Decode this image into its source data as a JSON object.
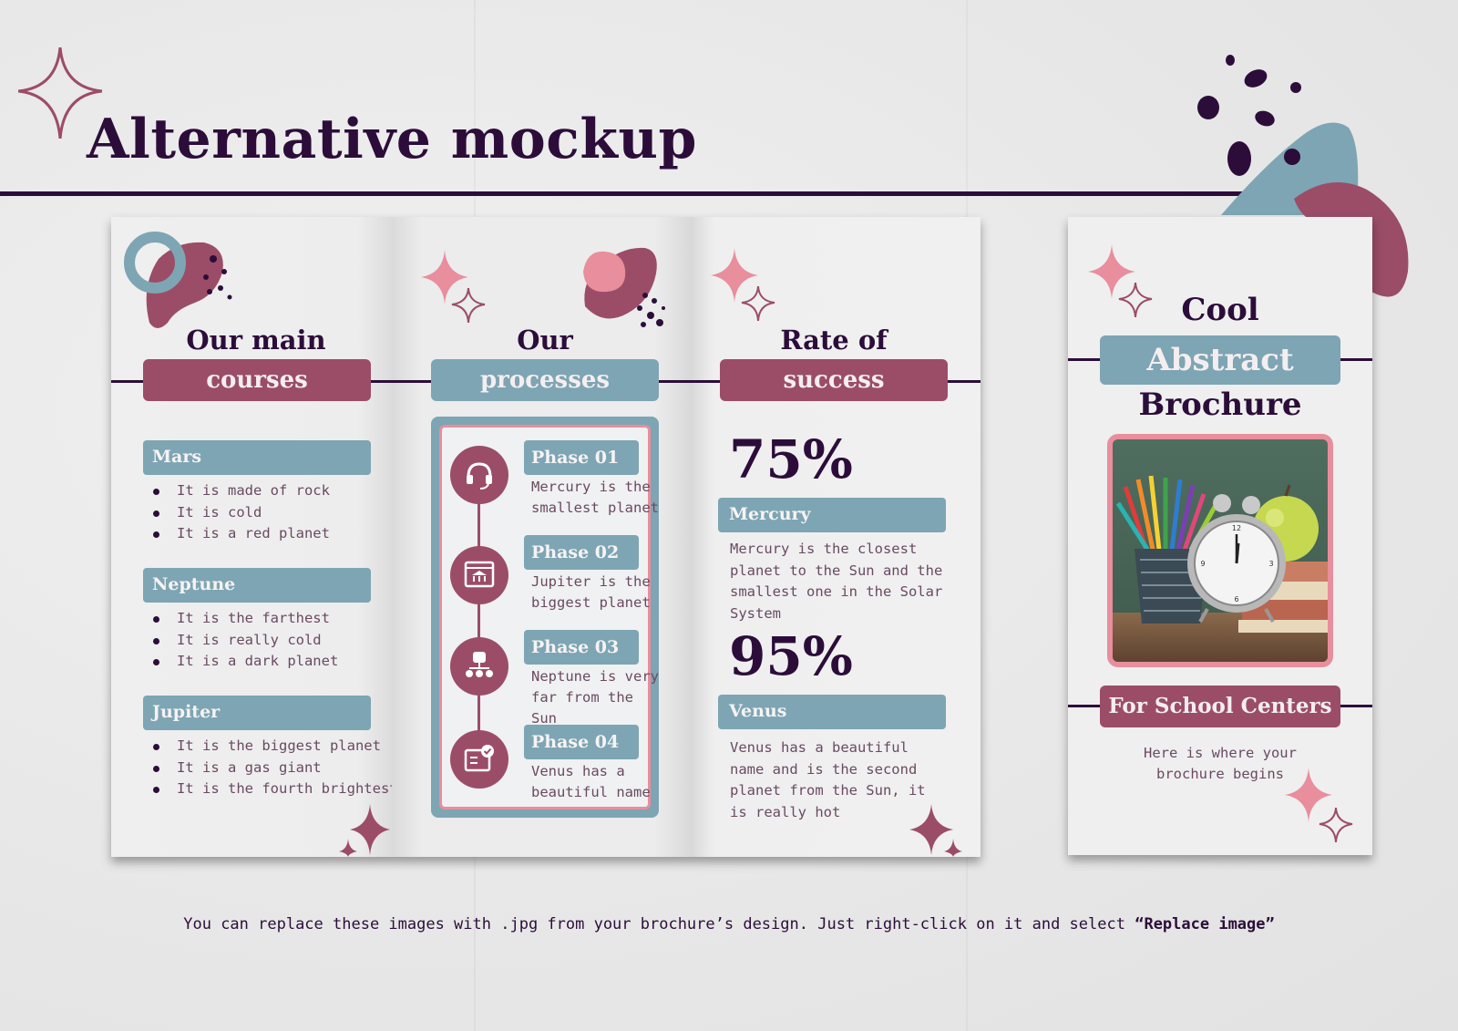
{
  "header": {
    "title": "Alternative mockup"
  },
  "panel1": {
    "heading_top": "Our main",
    "heading_pill": "courses",
    "sections": [
      {
        "title": "Mars",
        "items": [
          "It is made of rock",
          "It is cold",
          "It is a red planet"
        ]
      },
      {
        "title": "Neptune",
        "items": [
          "It is the farthest",
          "It is really cold",
          "It is a dark planet"
        ]
      },
      {
        "title": "Jupiter",
        "items": [
          "It is the biggest planet",
          "It is a gas giant",
          "It is the fourth brightest"
        ]
      }
    ]
  },
  "panel2": {
    "heading_top": "Our",
    "heading_pill": "processes",
    "phases": [
      {
        "label": "Phase 01",
        "text": "Mercury is the smallest planet",
        "icon": "headset-icon"
      },
      {
        "label": "Phase 02",
        "text": "Jupiter is the biggest planet",
        "icon": "browser-bank-icon"
      },
      {
        "label": "Phase 03",
        "text": "Neptune is very far from the Sun",
        "icon": "team-org-icon"
      },
      {
        "label": "Phase 04",
        "text": "Venus has a beautiful name",
        "icon": "certificate-check-icon"
      }
    ]
  },
  "panel3": {
    "heading_top": "Rate of",
    "heading_pill": "success",
    "stats": [
      {
        "value": "75%",
        "label": "Mercury",
        "text": "Mercury is the closest planet to the Sun and the smallest one in the Solar System"
      },
      {
        "value": "95%",
        "label": "Venus",
        "text": "Venus has a beautiful name and is the second planet from the Sun, it is really hot"
      }
    ]
  },
  "cover": {
    "line1": "Cool",
    "line2": "Abstract",
    "line3": "Brochure",
    "photo_label": "school-supplies-photo",
    "tag": "For School Centers",
    "subtitle": "Here is where your brochure begins"
  },
  "footer": {
    "text": "You can replace these images with .jpg from your brochure’s design. Just right-click on it and select ",
    "emphasis": "“Replace image”"
  },
  "colors": {
    "dark": "#2c0d3a",
    "maroon": "#9b4d67",
    "teal": "#7ea5b3",
    "pink": "#e88e9c"
  }
}
